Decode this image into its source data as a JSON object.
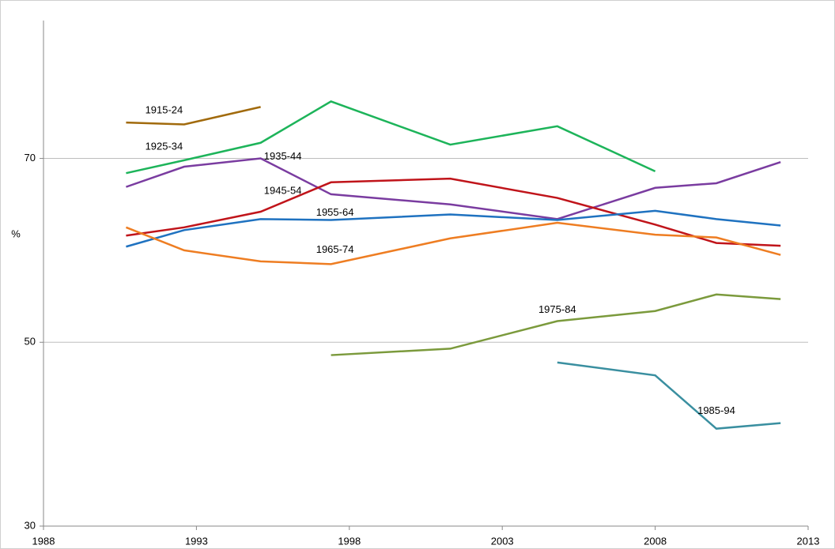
{
  "chart_data": {
    "type": "line",
    "y_label": "%",
    "xlim": [
      1988,
      2013
    ],
    "xticks": [
      1988,
      1993,
      1998,
      2003,
      2008,
      2013
    ],
    "ylim": [
      30,
      85
    ],
    "yticks": [
      30,
      50,
      70
    ],
    "grid": true,
    "x": [
      1990.7,
      1992.6,
      1995.1,
      1997.4,
      2001.3,
      2004.8,
      2008.0,
      2010.0,
      2012.1
    ],
    "series": [
      {
        "name": "1915-24",
        "color": "#a16a0c",
        "values": [
          73.9,
          73.7,
          75.6,
          null,
          null,
          null,
          null,
          null,
          null
        ]
      },
      {
        "name": "1925-34",
        "color": "#1db45a",
        "values": [
          68.4,
          69.8,
          71.7,
          76.2,
          71.5,
          73.5,
          68.6,
          null,
          null
        ]
      },
      {
        "name": "1935-44",
        "color": "#7a3ca0",
        "values": [
          66.9,
          69.1,
          70.0,
          66.1,
          65.0,
          63.4,
          66.8,
          67.3,
          69.6
        ]
      },
      {
        "name": "1945-54",
        "color": "#c0141a",
        "values": [
          61.6,
          62.5,
          64.2,
          67.4,
          67.8,
          65.7,
          62.8,
          60.8,
          60.5
        ]
      },
      {
        "name": "1955-64",
        "color": "#1f72c0",
        "values": [
          60.4,
          62.2,
          63.4,
          63.3,
          63.9,
          63.3,
          64.3,
          63.4,
          62.7
        ]
      },
      {
        "name": "1965-74",
        "color": "#ee7d22",
        "values": [
          62.5,
          60.0,
          58.8,
          58.5,
          61.3,
          63.0,
          61.7,
          61.4,
          59.5
        ]
      },
      {
        "name": "1975-84",
        "color": "#7b9a3c",
        "values": [
          null,
          null,
          null,
          48.6,
          49.3,
          52.3,
          53.4,
          55.2,
          54.7
        ]
      },
      {
        "name": "1985-94",
        "color": "#3a8fa0",
        "values": [
          null,
          null,
          null,
          null,
          null,
          47.8,
          46.4,
          40.6,
          41.2
        ]
      }
    ]
  }
}
